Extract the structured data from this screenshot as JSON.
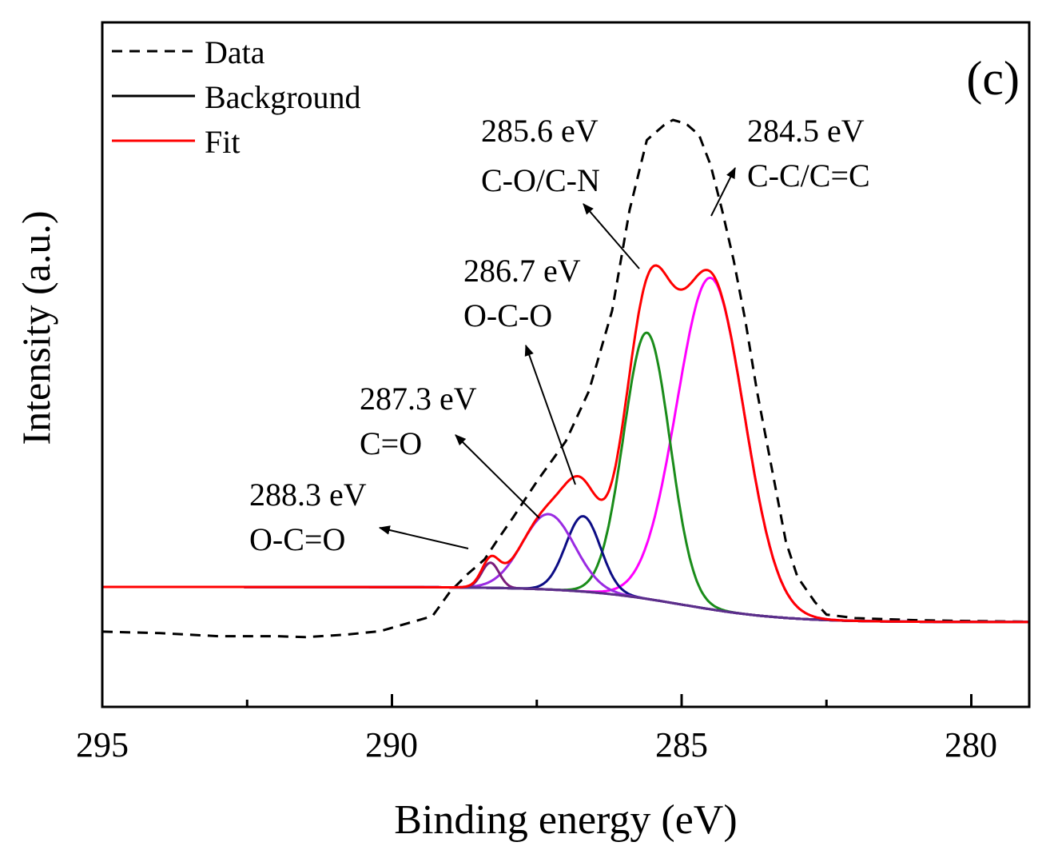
{
  "chart_data": {
    "type": "line",
    "panel_label": "(c)",
    "xlabel": "Binding energy (eV)",
    "ylabel": "Intensity (a.u.)",
    "xlim": [
      295,
      279
    ],
    "ylim": [
      -0.15,
      1.0
    ],
    "x_reversed": true,
    "xticks": [
      295,
      290,
      285,
      280
    ],
    "xtick_labels": [
      "295",
      "290",
      "285",
      "280"
    ],
    "minor_xticks": [
      292.5,
      287.5,
      282.5
    ],
    "legend": {
      "position": "top-left",
      "entries": [
        {
          "label": "Data",
          "color": "#000000",
          "style": "dashed"
        },
        {
          "label": "Background",
          "color": "#000000",
          "style": "solid"
        },
        {
          "label": "Fit",
          "color": "#ff0000",
          "style": "solid"
        }
      ]
    },
    "background": {
      "name": "Background",
      "color": "#5a2f8a",
      "low_level": 0.0,
      "high_level": 0.07,
      "center": 285.0,
      "width": 0.9
    },
    "data_series": {
      "name": "Data",
      "color": "#000000",
      "style": "dashed",
      "x": [
        295,
        294.0,
        293.0,
        292.0,
        291.5,
        290.8,
        290.2,
        289.3,
        289.0,
        288.7,
        288.4,
        288.2,
        287.9,
        287.5,
        287.0,
        286.6,
        286.2,
        285.9,
        285.6,
        285.3,
        285.15,
        285.0,
        284.9,
        284.7,
        284.5,
        284.3,
        284.1,
        283.9,
        283.7,
        283.4,
        283.2,
        283.0,
        282.7,
        282.5,
        282.0,
        281.0,
        280.0,
        279.0
      ],
      "values": [
        -0.019,
        -0.022,
        -0.028,
        -0.028,
        -0.03,
        -0.025,
        -0.018,
        0.012,
        0.06,
        0.095,
        0.125,
        0.16,
        0.21,
        0.28,
        0.36,
        0.46,
        0.62,
        0.82,
        0.96,
        0.99,
        1.0,
        0.995,
        0.99,
        0.97,
        0.91,
        0.82,
        0.72,
        0.6,
        0.46,
        0.28,
        0.16,
        0.09,
        0.04,
        0.015,
        0.008,
        0.004,
        0.002,
        0.001
      ]
    },
    "peaks": [
      {
        "name": "C-C/C=C",
        "center": 284.5,
        "height": 0.66,
        "sigma": 0.58,
        "color": "#ff00ff"
      },
      {
        "name": "C-O/C-N",
        "center": 285.6,
        "height": 0.53,
        "sigma": 0.4,
        "color": "#1a8c1a"
      },
      {
        "name": "O-C-O",
        "center": 286.7,
        "height": 0.15,
        "sigma": 0.3,
        "color": "#0d0d85"
      },
      {
        "name": "C=O",
        "center": 287.3,
        "height": 0.15,
        "sigma": 0.45,
        "color": "#9a2be2"
      },
      {
        "name": "O-C=O",
        "center": 288.3,
        "height": 0.05,
        "sigma": 0.15,
        "color": "#7b1c7b"
      }
    ],
    "fit": {
      "name": "Fit",
      "color": "#ff0000",
      "style": "solid"
    },
    "annotations": [
      {
        "energy": "284.5 eV",
        "label": "C-C/C=C",
        "peak": "C-C/C=C"
      },
      {
        "energy": "285.6 eV",
        "label": "C-O/C-N",
        "peak": "C-O/C-N"
      },
      {
        "energy": "286.7 eV",
        "label": "O-C-O",
        "peak": "O-C-O"
      },
      {
        "energy": "287.3 eV",
        "label": "C=O",
        "peak": "C=O"
      },
      {
        "energy": "288.3 eV",
        "label": "O-C=O",
        "peak": "O-C=O"
      }
    ]
  }
}
